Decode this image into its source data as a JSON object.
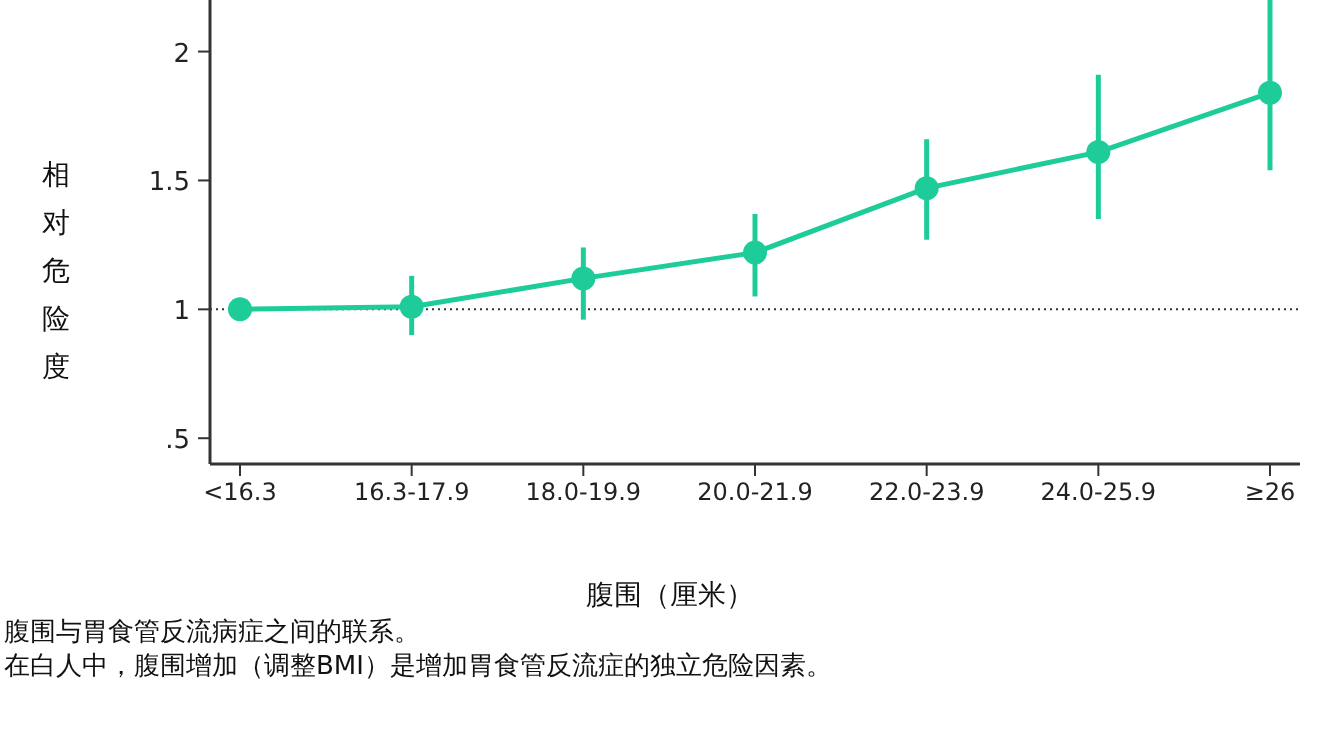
{
  "chart_data": {
    "type": "line",
    "ylabel": "相对危险度",
    "xlabel": "腹围（厘米）",
    "categories": [
      "<16.3",
      "16.3-17.9",
      "18.0-19.9",
      "20.0-21.9",
      "22.0-23.9",
      "24.0-25.9",
      "≥26"
    ],
    "values": [
      1.0,
      1.01,
      1.12,
      1.22,
      1.47,
      1.61,
      1.84
    ],
    "errors": [
      null,
      [
        0.9,
        1.13
      ],
      [
        0.96,
        1.24
      ],
      [
        1.05,
        1.37
      ],
      [
        1.27,
        1.66
      ],
      [
        1.35,
        1.91
      ],
      [
        1.54,
        2.2
      ]
    ],
    "color": "#1ecc9a",
    "marker": "circle",
    "line_style": "solid",
    "ylim": [
      0.4,
      2.2
    ],
    "yticks": [
      {
        "value": 0.5,
        "label": ".5"
      },
      1,
      1.5,
      2
    ],
    "ref_lines": [
      {
        "axis": "y",
        "value": 1,
        "color": "#333333",
        "line_style": "dotted"
      }
    ],
    "annotations": [
      "腹围与胃食管反流病症之间的联系。",
      "在白人中，腹围增加（调整BMI）是增加胃食管反流症的独立危险因素。"
    ]
  }
}
